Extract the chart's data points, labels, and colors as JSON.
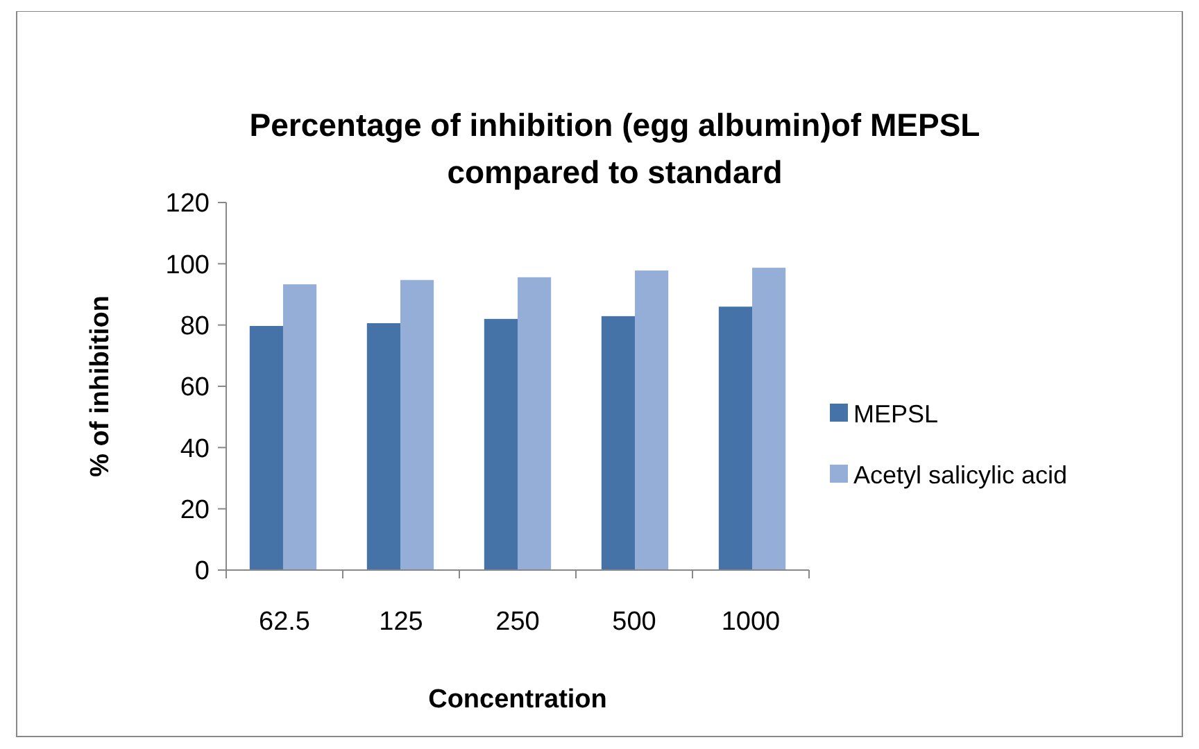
{
  "chart_data": {
    "type": "bar",
    "title": "Percentage of inhibition (egg albumin)of MEPSL compared to standard",
    "xlabel": "Concentration",
    "ylabel": "% of inhibition",
    "categories": [
      "62.5",
      "125",
      "250",
      "500",
      "1000"
    ],
    "series": [
      {
        "name": "MEPSL",
        "color": "#4572a7",
        "values": [
          79.7,
          80.6,
          82,
          82.9,
          86
        ]
      },
      {
        "name": "Acetyl salicylic acid",
        "color": "#95aed8",
        "values": [
          93.3,
          94.7,
          95.6,
          97.8,
          98.7
        ]
      }
    ],
    "ylim": [
      0,
      120
    ],
    "yticks": [
      0,
      20,
      40,
      60,
      80,
      100,
      120
    ],
    "grid": false,
    "legend": "right"
  }
}
